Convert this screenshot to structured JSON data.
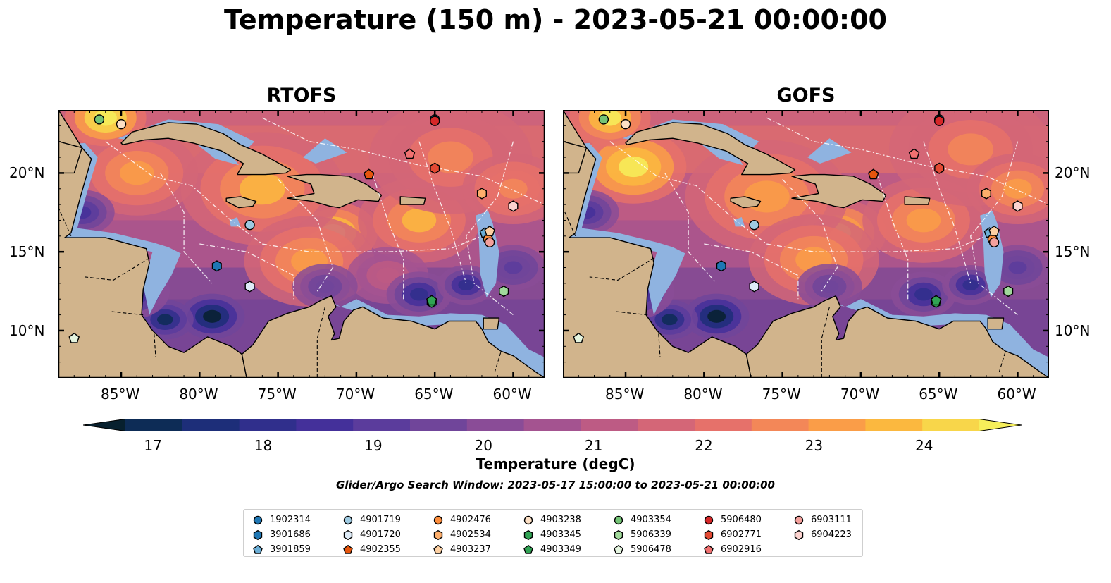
{
  "title": "Temperature (150 m) - 2023-05-21 00:00:00",
  "panels": [
    {
      "title": "RTOFS",
      "variant": "rtofs"
    },
    {
      "title": "GOFS",
      "variant": "gofs"
    }
  ],
  "axes": {
    "lon_ticks": [
      "85°W",
      "80°W",
      "75°W",
      "70°W",
      "65°W",
      "60°W"
    ],
    "lat_ticks": [
      "20°N",
      "15°N",
      "10°N"
    ],
    "lon_values": [
      -85,
      -80,
      -75,
      -70,
      -65,
      -60
    ],
    "lat_values": [
      20,
      15,
      10
    ],
    "lon_range": [
      -89,
      -58
    ],
    "lat_range": [
      7,
      24
    ]
  },
  "colorbar": {
    "label": "Temperature (degC)",
    "ticks": [
      "17",
      "18",
      "19",
      "20",
      "21",
      "22",
      "23",
      "24"
    ],
    "tick_values": [
      17,
      18,
      19,
      20,
      21,
      22,
      23,
      24
    ],
    "range": [
      16.75,
      24.5
    ],
    "colors": [
      "#07202e",
      "#0d2c56",
      "#1d2e79",
      "#302f8c",
      "#44309a",
      "#5b3c9c",
      "#70459a",
      "#8a4c97",
      "#a45390",
      "#bd5b84",
      "#d46677",
      "#e6716a",
      "#f38758",
      "#fa9d48",
      "#fbb83f",
      "#f8d64a",
      "#f6ef5a"
    ],
    "extend": "both"
  },
  "search_window": "Glider/Argo Search Window: 2023-05-17 15:00:00 to 2023-05-21 00:00:00",
  "colors": {
    "land": "#d1b48c",
    "shelf": "#8fb3e0",
    "deep_ocean": "#072232",
    "border": "#000000"
  },
  "floats": [
    {
      "id": "1902314",
      "marker": "circle",
      "color": "#1f77b4",
      "lon": -65.0,
      "lat": 23.4
    },
    {
      "id": "3901686",
      "marker": "hexagon",
      "color": "#1f77b4",
      "lon": -78.9,
      "lat": 14.1
    },
    {
      "id": "3901859",
      "marker": "pentagon",
      "color": "#6baed6",
      "lon": -61.8,
      "lat": 16.2
    },
    {
      "id": "4901719",
      "marker": "circle",
      "color": "#9ecae1",
      "lon": -76.8,
      "lat": 16.7
    },
    {
      "id": "4901720",
      "marker": "hexagon",
      "color": "#deebf7",
      "lon": -76.8,
      "lat": 12.8
    },
    {
      "id": "4902355",
      "marker": "pentagon",
      "color": "#e6550d",
      "lon": -69.2,
      "lat": 19.9
    },
    {
      "id": "4902476",
      "marker": "circle",
      "color": "#fd8d3c",
      "lon": -61.6,
      "lat": 15.8
    },
    {
      "id": "4902534",
      "marker": "hexagon",
      "color": "#fdae6b",
      "lon": -62.0,
      "lat": 18.7
    },
    {
      "id": "4903237",
      "marker": "pentagon",
      "color": "#fdd0a2",
      "lon": -61.5,
      "lat": 16.3
    },
    {
      "id": "4903238",
      "marker": "circle",
      "color": "#fde0c5",
      "lon": -85.0,
      "lat": 23.1
    },
    {
      "id": "4903345",
      "marker": "hexagon",
      "color": "#31a354",
      "lon": -65.2,
      "lat": 11.8
    },
    {
      "id": "4903349",
      "marker": "pentagon",
      "color": "#31a354",
      "lon": -65.2,
      "lat": 11.9
    },
    {
      "id": "4903354",
      "marker": "circle",
      "color": "#74c476",
      "lon": -86.4,
      "lat": 23.4
    },
    {
      "id": "5906339",
      "marker": "hexagon",
      "color": "#a1d99b",
      "lon": -60.6,
      "lat": 12.5
    },
    {
      "id": "5906478",
      "marker": "pentagon",
      "color": "#e5f5e0",
      "lon": -88.0,
      "lat": 9.5
    },
    {
      "id": "5906480",
      "marker": "circle",
      "color": "#d62728",
      "lon": -65.0,
      "lat": 23.3
    },
    {
      "id": "6902771",
      "marker": "hexagon",
      "color": "#e34a33",
      "lon": -65.0,
      "lat": 20.3
    },
    {
      "id": "6902916",
      "marker": "pentagon",
      "color": "#f07070",
      "lon": -66.6,
      "lat": 21.2
    },
    {
      "id": "6903111",
      "marker": "circle",
      "color": "#f4a09c",
      "lon": -61.5,
      "lat": 15.6
    },
    {
      "id": "6904223",
      "marker": "hexagon",
      "color": "#fcd3cf",
      "lon": -60.0,
      "lat": 17.9
    }
  ]
}
